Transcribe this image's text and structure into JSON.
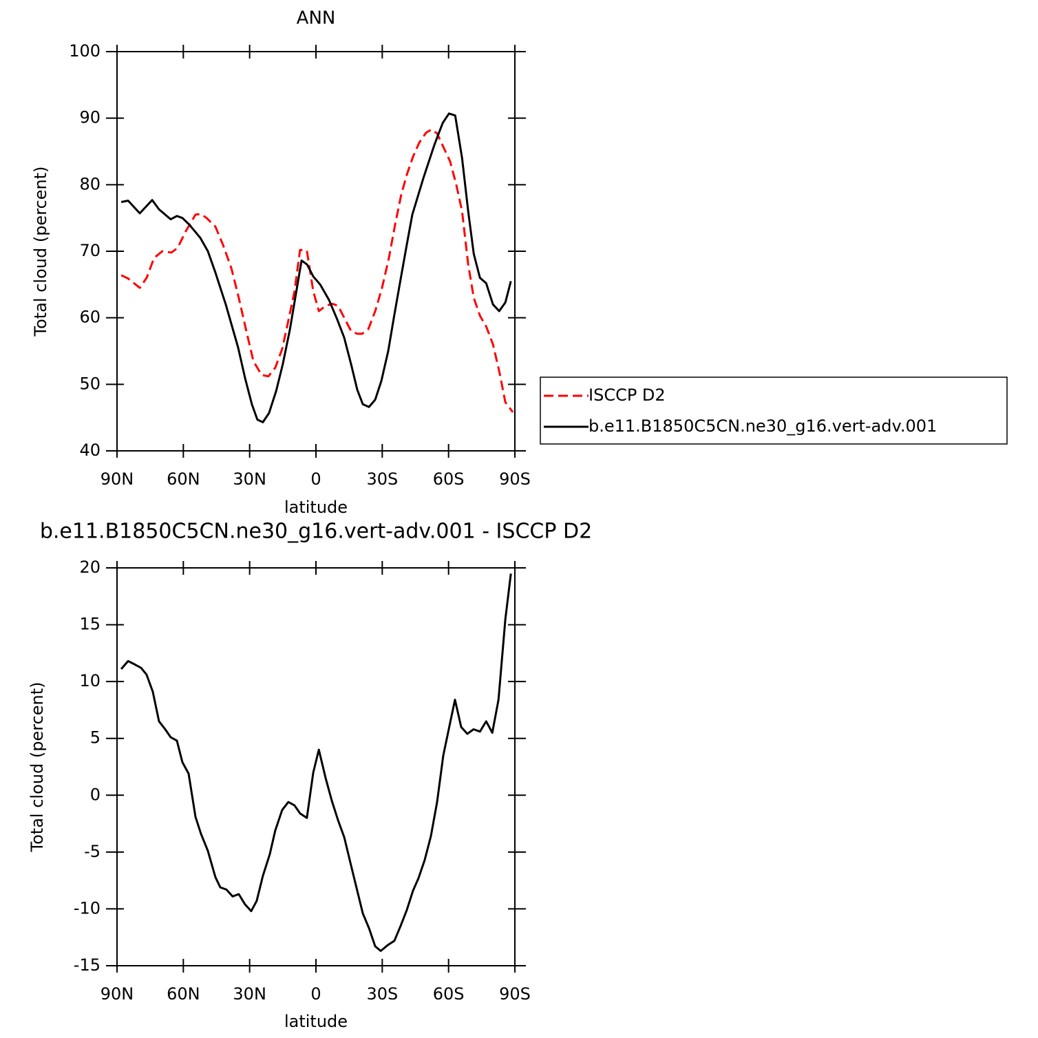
{
  "chart_data": [
    {
      "type": "line",
      "title": "ANN",
      "xlabel": "latitude",
      "ylabel": "Total cloud (percent)",
      "xlim": [
        90,
        -90
      ],
      "xticks": [
        {
          "value": 90,
          "label": "90N"
        },
        {
          "value": 60,
          "label": "60N"
        },
        {
          "value": 30,
          "label": "30N"
        },
        0,
        {
          "value": -30,
          "label": "30S"
        },
        {
          "value": -60,
          "label": "60S"
        },
        {
          "value": -90,
          "label": "90S"
        }
      ],
      "ylim": [
        40,
        100
      ],
      "yticks": [
        40,
        50,
        60,
        70,
        80,
        90,
        100
      ],
      "series": [
        {
          "name": "ISCCP D2",
          "color": "#ff0000",
          "dash": true,
          "x": [
            88.1,
            85,
            79.7,
            76.6,
            73.2,
            69.5,
            65.4,
            62.6,
            58.9,
            54.5,
            52,
            49.5,
            45.5,
            42.1,
            38.3,
            34.9,
            31.5,
            28.3,
            24.6,
            21.5,
            18.4,
            15.3,
            12.2,
            9.7,
            7.2,
            4.1,
            1.2,
            -1.3,
            -4.4,
            -7.5,
            -10,
            -12.8,
            -15.9,
            -18.7,
            -20.9,
            -23.7,
            -26.8,
            -29.9,
            -33,
            -35.8,
            -38.6,
            -41.1,
            -43.9,
            -46.7,
            -49.8,
            -52.3,
            -54.8,
            -57.9,
            -60.7,
            -63.5,
            -66.1,
            -68.9,
            -71.4,
            -74.2,
            -77,
            -80.1,
            -82.9,
            -85.7,
            -89.1
          ],
          "values": [
            66.4,
            65.9,
            64.5,
            66,
            69,
            70,
            69.8,
            70.5,
            73,
            75.5,
            75.6,
            75,
            73.7,
            71,
            67.5,
            63,
            58,
            53.5,
            51.4,
            51.2,
            52.5,
            55.3,
            60,
            64,
            70.2,
            70.1,
            64,
            61,
            61.8,
            62.1,
            61.8,
            60,
            58,
            57.6,
            57.6,
            58.3,
            61,
            64.5,
            69,
            74,
            78.5,
            81.5,
            84.2,
            86.3,
            87.8,
            88.3,
            87.7,
            85.5,
            83.5,
            80,
            76,
            68,
            63,
            60.3,
            58.7,
            56,
            52,
            47.3,
            45.8
          ]
        },
        {
          "name": "b.e11.B1850C5CN.ne30_g16.vert-adv.001",
          "color": "#000000",
          "dash": false,
          "x": [
            88.1,
            85,
            79.7,
            74.1,
            71,
            65.7,
            62.9,
            60.4,
            57.3,
            52.3,
            48.9,
            45.5,
            40.8,
            35.2,
            32.1,
            29,
            26.5,
            24,
            21.2,
            18,
            15,
            11.8,
            6.5,
            4,
            1.2,
            -1.9,
            -5.9,
            -9.7,
            -12.8,
            -15.9,
            -18.7,
            -21.2,
            -24,
            -26.8,
            -29.6,
            -32.7,
            -35.5,
            -38.6,
            -41.1,
            -43.6,
            -48.6,
            -53.6,
            -57.4,
            -60.2,
            -63,
            -66.1,
            -68.9,
            -71.4,
            -74.2,
            -77,
            -80.1,
            -82.9,
            -85.7,
            -88.2
          ],
          "values": [
            77.4,
            77.6,
            75.7,
            77.7,
            76.3,
            74.8,
            75.3,
            75,
            74,
            72,
            70,
            66.8,
            62,
            55.5,
            51,
            47,
            44.7,
            44.3,
            45.7,
            49,
            53,
            58.2,
            68.6,
            68,
            66.2,
            65,
            62.7,
            59.7,
            57,
            53,
            49.2,
            47,
            46.6,
            47.7,
            50.5,
            55,
            60.5,
            66.3,
            71,
            75.5,
            81,
            86,
            89.3,
            90.7,
            90.4,
            84,
            76,
            69.6,
            66,
            65.2,
            62,
            61,
            62.3,
            65.5
          ]
        }
      ]
    },
    {
      "type": "line",
      "title": "b.e11.B1850C5CN.ne30_g16.vert-adv.001 - ISCCP D2",
      "xlabel": "latitude",
      "ylabel": "Total cloud (percent)",
      "xlim": [
        90,
        -90
      ],
      "xticks": [
        {
          "value": 90,
          "label": "90N"
        },
        {
          "value": 60,
          "label": "60N"
        },
        {
          "value": 30,
          "label": "30N"
        },
        0,
        {
          "value": -30,
          "label": "30S"
        },
        {
          "value": -60,
          "label": "60S"
        },
        {
          "value": -90,
          "label": "90S"
        }
      ],
      "ylim": [
        -15,
        20
      ],
      "yticks": [
        -15,
        -10,
        -5,
        0,
        5,
        10,
        15,
        20
      ],
      "series": [
        {
          "color": "#000000",
          "dash": false,
          "x": [
            88.1,
            85,
            81.9,
            79.1,
            76.6,
            73.8,
            71,
            68.2,
            65.7,
            62.9,
            60.4,
            57.6,
            54.5,
            52,
            48.9,
            45.5,
            43.3,
            40.5,
            37.7,
            34.9,
            32.1,
            29.3,
            26.8,
            24,
            20.9,
            18.4,
            15.3,
            12.5,
            9.7,
            7.2,
            4.1,
            1.2,
            -1.3,
            -4.4,
            -7.2,
            -10,
            -12.8,
            -15.9,
            -18.7,
            -21.2,
            -24,
            -26.8,
            -29.3,
            -32.4,
            -35.5,
            -38.3,
            -41.1,
            -43.9,
            -46.4,
            -49.2,
            -52,
            -54.8,
            -57.6,
            -60.4,
            -62.9,
            -65.7,
            -68.5,
            -71.3,
            -74.2,
            -77,
            -79.8,
            -82.6,
            -85.7,
            -88.2
          ],
          "values": [
            11.1,
            11.8,
            11.5,
            11.2,
            10.6,
            9.1,
            6.5,
            5.8,
            5.1,
            4.8,
            2.9,
            1.9,
            -1.9,
            -3.4,
            -4.9,
            -7.2,
            -8.1,
            -8.3,
            -8.9,
            -8.7,
            -9.6,
            -10.2,
            -9.3,
            -7.1,
            -5.2,
            -3.1,
            -1.3,
            -0.6,
            -0.9,
            -1.6,
            -2,
            2,
            4,
            1.5,
            -0.5,
            -2.2,
            -3.7,
            -6.2,
            -8.4,
            -10.4,
            -11.7,
            -13.3,
            -13.7,
            -13.2,
            -12.8,
            -11.5,
            -10.1,
            -8.4,
            -7.3,
            -5.7,
            -3.6,
            -0.6,
            3.5,
            6.1,
            8.4,
            6,
            5.4,
            5.8,
            5.6,
            6.5,
            5.5,
            8.4,
            15.5,
            19.5
          ]
        }
      ]
    }
  ]
}
